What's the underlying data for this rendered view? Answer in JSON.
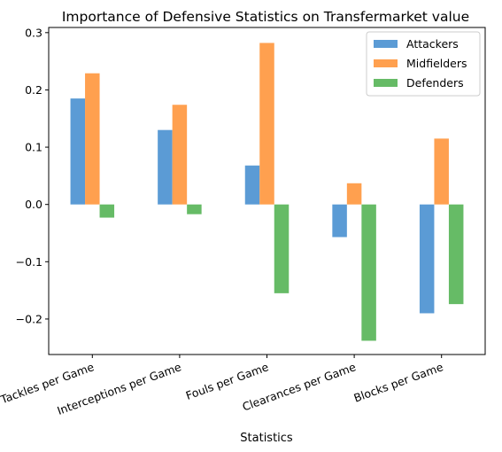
{
  "chart_data": {
    "type": "bar",
    "title": "Importance of Defensive Statistics on Transfermarket value",
    "xlabel": "Statistics",
    "ylabel": "",
    "categories": [
      "Tackles per Game",
      "Interceptions per Game",
      "Fouls per Game",
      "Clearances per Game",
      "Blocks per Game"
    ],
    "series": [
      {
        "name": "Attackers",
        "color": "#5b9bd5",
        "values": [
          0.185,
          0.13,
          0.068,
          -0.057,
          -0.19
        ]
      },
      {
        "name": "Midfielders",
        "color": "#ffa04f",
        "values": [
          0.229,
          0.174,
          0.282,
          0.037,
          0.115
        ]
      },
      {
        "name": "Defenders",
        "color": "#66bb66",
        "values": [
          -0.023,
          -0.017,
          -0.155,
          -0.238,
          -0.174
        ]
      }
    ],
    "ylim": [
      -0.262,
      0.309
    ],
    "yticks": [
      -0.2,
      -0.1,
      0.0,
      0.1,
      0.2,
      0.3
    ],
    "ytick_labels": [
      "−0.2",
      "−0.1",
      "0.0",
      "0.1",
      "0.2",
      "0.3"
    ],
    "grid": false,
    "legend_position": "top-right"
  }
}
